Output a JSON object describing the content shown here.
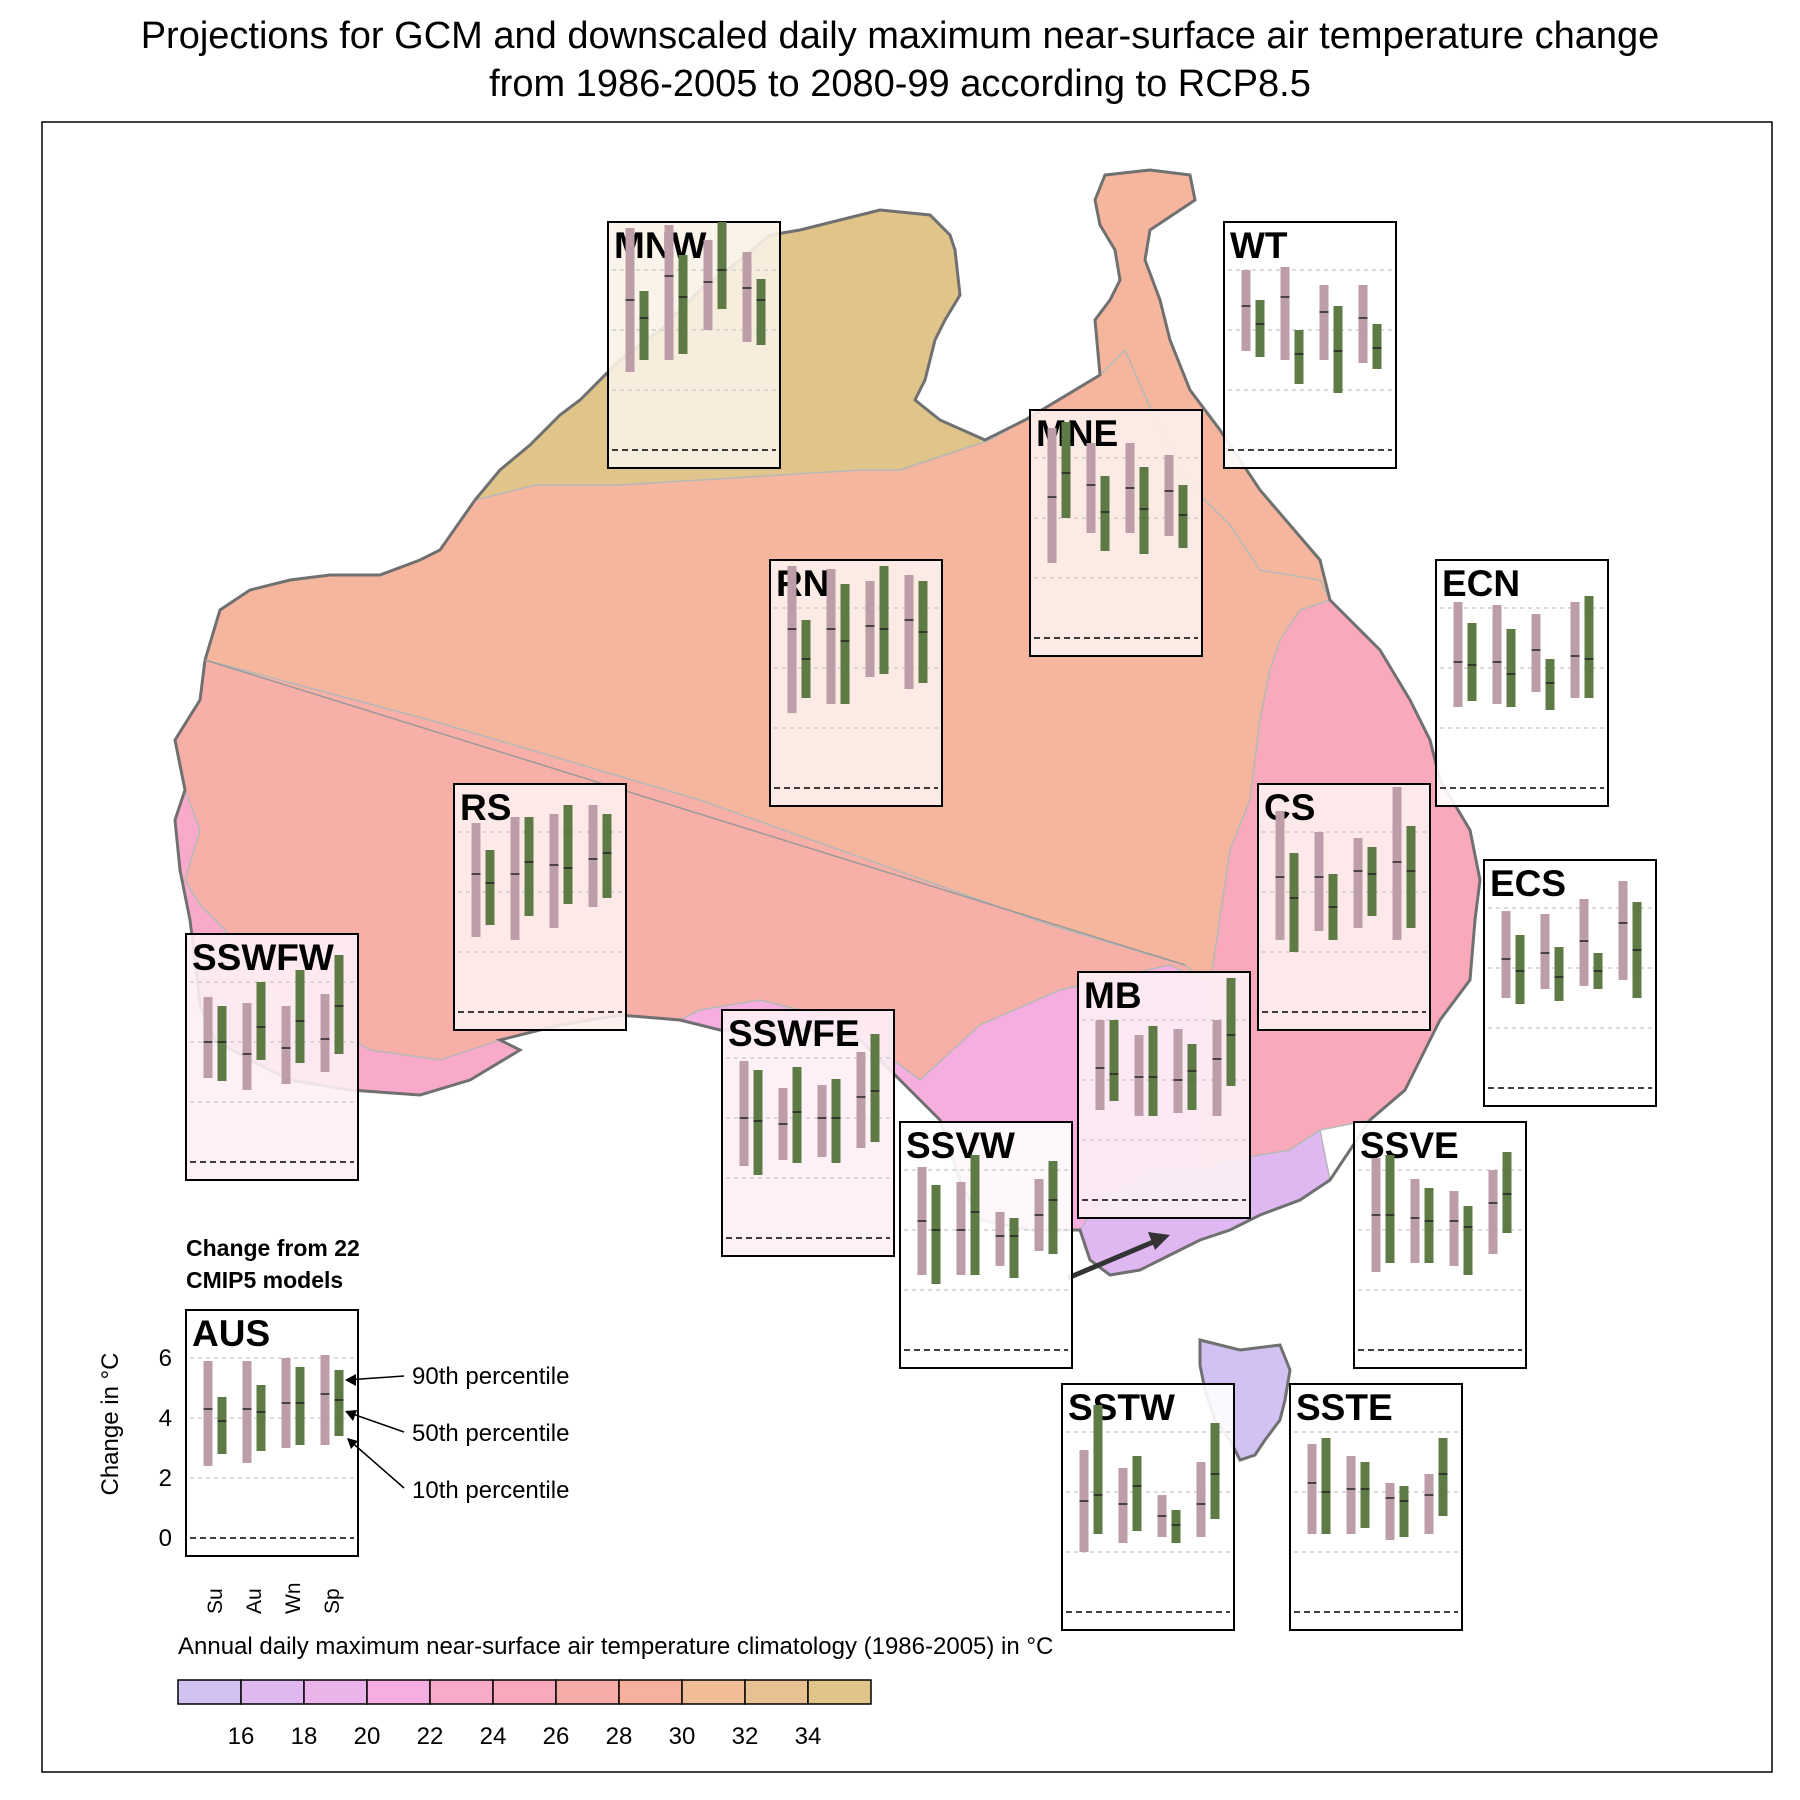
{
  "title": {
    "line1": "Projections for GCM and downscaled daily maximum near-surface air temperature change",
    "line2": "from 1986-2005 to 2080-99 according to RCP8.5"
  },
  "colors": {
    "gcm": "#bd9ea8",
    "downscaled": "#5e7a45",
    "coast": "#707070",
    "region_border": "#b8b8b8",
    "scale": [
      "#d2c2f4",
      "#dfb8f2",
      "#ecb2ea",
      "#f6aee0",
      "#f9aacb",
      "#faa9bb",
      "#f8aca8",
      "#f6b09d",
      "#f1bc98",
      "#e8c192",
      "#e0c489"
    ],
    "fills": {
      "north": "#e0c489",
      "rangelands_north": "#f5b69d",
      "rangelands_south": "#f8afa7",
      "east_coast": "#faa9bb",
      "south_west": "#f9aacb",
      "south": "#f6aee0",
      "victoria": "#dfb8f2",
      "tasmania": "#d2c2f4"
    }
  },
  "legend": {
    "caption_line1": "Change from 22",
    "caption_line2": "CMIP5 models",
    "ylabel": "Change in  °C",
    "yticks": [
      "0",
      "2",
      "4",
      "6"
    ],
    "seasons": [
      "Su",
      "Au",
      "Wn",
      "Sp"
    ],
    "p90": "90th percentile",
    "p50": "50th percentile",
    "p10": "10th percentile"
  },
  "colorbar": {
    "label": "Annual daily maximum near-surface air temperature climatology (1986-2005) in  °C",
    "ticks": [
      "16",
      "18",
      "20",
      "22",
      "24",
      "26",
      "28",
      "30",
      "32",
      "34"
    ]
  },
  "regions": [
    {
      "name": "AUS",
      "tint": "#ffffff",
      "gcm": [
        [
          2.4,
          4.3,
          5.9
        ],
        [
          2.5,
          4.3,
          5.9
        ],
        [
          3.0,
          4.5,
          6.0
        ],
        [
          3.1,
          4.8,
          6.1
        ]
      ],
      "ds": [
        [
          2.8,
          3.9,
          4.7
        ],
        [
          2.9,
          4.2,
          5.1
        ],
        [
          3.1,
          4.5,
          5.7
        ],
        [
          3.4,
          4.6,
          5.6
        ]
      ]
    },
    {
      "name": "MNW",
      "tint": "#f9f2e7",
      "gcm": [
        [
          2.6,
          5.0,
          7.4
        ],
        [
          3.0,
          5.8,
          7.5
        ],
        [
          4.0,
          5.6,
          7.0
        ],
        [
          3.6,
          5.4,
          6.6
        ]
      ],
      "ds": [
        [
          3.0,
          4.4,
          5.3
        ],
        [
          3.2,
          5.1,
          6.5
        ],
        [
          4.7,
          6.0,
          7.6
        ],
        [
          3.5,
          5.0,
          5.7
        ]
      ]
    },
    {
      "name": "WT",
      "tint": "#ffffff",
      "gcm": [
        [
          3.3,
          4.8,
          6.0
        ],
        [
          3.0,
          5.1,
          6.1
        ],
        [
          3.0,
          4.6,
          5.5
        ],
        [
          2.9,
          4.4,
          5.5
        ]
      ],
      "ds": [
        [
          3.1,
          4.2,
          5.0
        ],
        [
          2.2,
          3.2,
          4.0
        ],
        [
          1.9,
          3.3,
          4.8
        ],
        [
          2.7,
          3.4,
          4.2
        ]
      ]
    },
    {
      "name": "MNE",
      "tint": "#fcf1ec",
      "gcm": [
        [
          2.5,
          4.7,
          7.0
        ],
        [
          3.5,
          5.1,
          6.5
        ],
        [
          3.5,
          5.0,
          6.5
        ],
        [
          3.4,
          4.9,
          6.1
        ]
      ],
      "ds": [
        [
          4.0,
          5.5,
          7.2
        ],
        [
          2.9,
          4.2,
          5.4
        ],
        [
          2.8,
          4.3,
          5.7
        ],
        [
          3.0,
          4.1,
          5.1
        ]
      ]
    },
    {
      "name": "RN",
      "tint": "#fdf0ec",
      "gcm": [
        [
          2.5,
          5.3,
          7.4
        ],
        [
          2.8,
          5.3,
          7.3
        ],
        [
          3.7,
          5.4,
          6.9
        ],
        [
          3.3,
          5.6,
          7.1
        ]
      ],
      "ds": [
        [
          3.0,
          4.3,
          5.6
        ],
        [
          2.8,
          4.9,
          6.8
        ],
        [
          3.8,
          5.3,
          7.4
        ],
        [
          3.5,
          5.2,
          6.9
        ]
      ]
    },
    {
      "name": "ECN",
      "tint": "#ffffff",
      "gcm": [
        [
          2.7,
          4.2,
          6.2
        ],
        [
          2.8,
          4.2,
          6.1
        ],
        [
          3.2,
          4.6,
          5.8
        ],
        [
          3.0,
          4.4,
          6.2
        ]
      ],
      "ds": [
        [
          2.9,
          4.1,
          5.5
        ],
        [
          2.7,
          3.8,
          5.3
        ],
        [
          2.6,
          3.5,
          4.3
        ],
        [
          3.0,
          4.3,
          6.4
        ]
      ]
    },
    {
      "name": "RS",
      "tint": "#fdf0ee",
      "gcm": [
        [
          2.5,
          4.6,
          6.3
        ],
        [
          2.4,
          4.6,
          6.5
        ],
        [
          2.8,
          4.9,
          6.6
        ],
        [
          3.5,
          5.1,
          6.9
        ]
      ],
      "ds": [
        [
          2.9,
          4.3,
          5.4
        ],
        [
          3.2,
          5.0,
          6.5
        ],
        [
          3.6,
          4.8,
          6.9
        ],
        [
          3.8,
          5.3,
          6.6
        ]
      ]
    },
    {
      "name": "CS",
      "tint": "#fdeff0",
      "gcm": [
        [
          2.4,
          4.5,
          6.7
        ],
        [
          2.7,
          4.5,
          6.0
        ],
        [
          2.8,
          4.7,
          5.8
        ],
        [
          2.4,
          5.0,
          7.5
        ]
      ],
      "ds": [
        [
          2.0,
          3.8,
          5.3
        ],
        [
          2.4,
          3.5,
          4.6
        ],
        [
          3.2,
          4.6,
          5.5
        ],
        [
          2.8,
          4.7,
          6.2
        ]
      ]
    },
    {
      "name": "ECS",
      "tint": "#ffffff",
      "gcm": [
        [
          3.0,
          4.3,
          5.9
        ],
        [
          3.3,
          4.5,
          5.8
        ],
        [
          3.4,
          4.9,
          6.3
        ],
        [
          3.6,
          5.5,
          6.9
        ]
      ],
      "ds": [
        [
          2.8,
          3.9,
          5.1
        ],
        [
          2.9,
          3.7,
          4.7
        ],
        [
          3.3,
          3.9,
          4.5
        ],
        [
          3.0,
          4.6,
          6.2
        ]
      ]
    },
    {
      "name": "SSWFW",
      "tint": "#fdf0f6",
      "gcm": [
        [
          2.8,
          4.0,
          5.5
        ],
        [
          2.4,
          3.6,
          5.3
        ],
        [
          2.6,
          3.8,
          5.2
        ],
        [
          3.0,
          4.1,
          5.6
        ]
      ],
      "ds": [
        [
          2.7,
          4.0,
          5.2
        ],
        [
          3.4,
          4.5,
          6.0
        ],
        [
          3.3,
          4.7,
          6.4
        ],
        [
          3.6,
          5.2,
          6.9
        ]
      ]
    },
    {
      "name": "SSWFE",
      "tint": "#fdf0f6",
      "gcm": [
        [
          2.4,
          4.0,
          5.9
        ],
        [
          2.6,
          3.8,
          5.0
        ],
        [
          2.7,
          4.0,
          5.1
        ],
        [
          3.0,
          4.7,
          6.2
        ]
      ],
      "ds": [
        [
          2.1,
          3.9,
          5.6
        ],
        [
          2.5,
          4.2,
          5.7
        ],
        [
          2.5,
          4.0,
          5.3
        ],
        [
          3.2,
          4.9,
          6.8
        ]
      ]
    },
    {
      "name": "MB",
      "tint": "#fdeff6",
      "gcm": [
        [
          3.0,
          4.4,
          6.0
        ],
        [
          2.8,
          4.1,
          5.5
        ],
        [
          2.9,
          4.0,
          5.7
        ],
        [
          2.8,
          4.7,
          6.0
        ]
      ],
      "ds": [
        [
          3.3,
          4.2,
          6.0
        ],
        [
          2.8,
          4.1,
          5.8
        ],
        [
          3.0,
          4.3,
          5.2
        ],
        [
          3.8,
          5.5,
          7.4
        ]
      ]
    },
    {
      "name": "SSVW",
      "tint": "#ffffff",
      "gcm": [
        [
          2.5,
          4.3,
          6.1
        ],
        [
          2.5,
          4.0,
          5.6
        ],
        [
          2.8,
          3.8,
          4.6
        ],
        [
          3.3,
          4.5,
          5.7
        ]
      ],
      "ds": [
        [
          2.2,
          4.0,
          5.5
        ],
        [
          2.5,
          4.6,
          6.5
        ],
        [
          2.4,
          3.8,
          4.4
        ],
        [
          3.2,
          5.0,
          6.3
        ]
      ]
    },
    {
      "name": "SSVE",
      "tint": "#ffffff",
      "gcm": [
        [
          2.6,
          4.5,
          6.4
        ],
        [
          2.9,
          4.4,
          5.7
        ],
        [
          2.8,
          4.3,
          5.3
        ],
        [
          3.2,
          4.9,
          6.0
        ]
      ],
      "ds": [
        [
          2.9,
          4.5,
          6.5
        ],
        [
          2.9,
          4.3,
          5.4
        ],
        [
          2.5,
          4.1,
          4.8
        ],
        [
          3.9,
          5.2,
          6.6
        ]
      ]
    },
    {
      "name": "SSTW",
      "tint": "#ffffff",
      "gcm": [
        [
          2.0,
          3.7,
          5.4
        ],
        [
          2.3,
          3.6,
          4.8
        ],
        [
          2.5,
          3.2,
          3.9
        ],
        [
          2.5,
          3.6,
          5.0
        ]
      ],
      "ds": [
        [
          2.6,
          3.9,
          6.9
        ],
        [
          2.7,
          4.2,
          5.2
        ],
        [
          2.3,
          2.9,
          3.4
        ],
        [
          3.1,
          4.6,
          6.3
        ]
      ]
    },
    {
      "name": "SSTE",
      "tint": "#ffffff",
      "gcm": [
        [
          2.6,
          4.3,
          5.6
        ],
        [
          2.6,
          4.1,
          5.2
        ],
        [
          2.4,
          3.8,
          4.3
        ],
        [
          2.6,
          3.9,
          4.6
        ]
      ],
      "ds": [
        [
          2.6,
          4.0,
          5.8
        ],
        [
          2.8,
          4.1,
          5.0
        ],
        [
          2.5,
          3.7,
          4.2
        ],
        [
          3.2,
          4.6,
          5.8
        ]
      ]
    }
  ]
}
